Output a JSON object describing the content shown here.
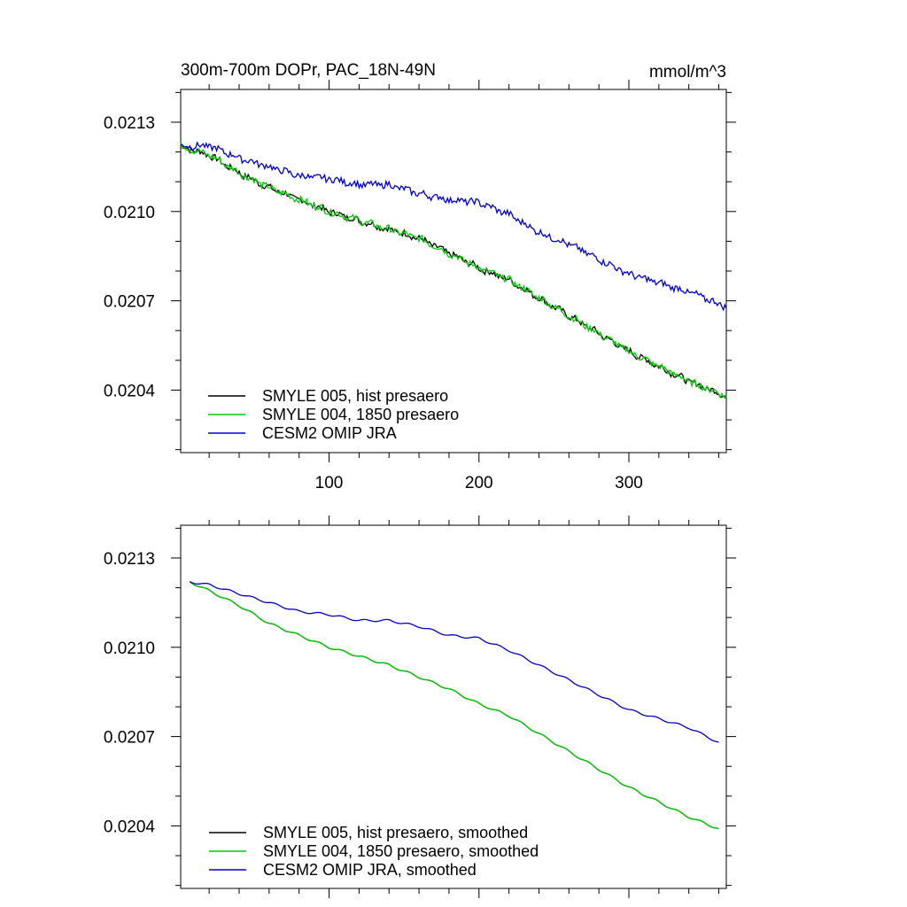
{
  "title_left": "300m-700m DOPr, PAC_18N-49N",
  "title_right": "mmol/m^3",
  "chart_data": [
    {
      "type": "line",
      "title": "300m-700m DOPr, PAC_18N-49N",
      "units": "mmol/m^3",
      "xlim": [
        1,
        365
      ],
      "ylim": [
        0.02019,
        0.02141
      ],
      "x_ticks": [
        100,
        200,
        300
      ],
      "x_tick_labels": [
        "100",
        "200",
        "300"
      ],
      "y_ticks": [
        0.0204,
        0.0207,
        0.021,
        0.0213
      ],
      "y_tick_labels": [
        "0.0204",
        "0.0207",
        "0.0210",
        "0.0213"
      ],
      "legend_position": "bottom-left",
      "x": [
        1,
        20,
        40,
        60,
        80,
        100,
        120,
        140,
        160,
        180,
        200,
        220,
        240,
        260,
        280,
        300,
        320,
        340,
        365
      ],
      "series": [
        {
          "name": "SMYLE 005, hist presaero",
          "color": "#000000",
          "values": [
            0.02122,
            0.02119,
            0.02113,
            0.02108,
            0.02104,
            0.021,
            0.02097,
            0.02094,
            0.02091,
            0.02086,
            0.02081,
            0.02077,
            0.02071,
            0.02065,
            0.02059,
            0.02053,
            0.02048,
            0.02043,
            0.02038
          ]
        },
        {
          "name": "SMYLE 004, 1850 presaero",
          "color": "#00cc00",
          "values": [
            0.02122,
            0.02119,
            0.02113,
            0.02108,
            0.02104,
            0.021,
            0.02097,
            0.02094,
            0.02091,
            0.02086,
            0.02081,
            0.02077,
            0.02071,
            0.02065,
            0.02059,
            0.02053,
            0.02048,
            0.02043,
            0.02038
          ]
        },
        {
          "name": "CESM2 OMIP JRA",
          "color": "#0000cc",
          "values": [
            0.02122,
            0.02122,
            0.02118,
            0.02115,
            0.02112,
            0.02111,
            0.02109,
            0.02109,
            0.02106,
            0.02104,
            0.02103,
            0.02099,
            0.02093,
            0.02089,
            0.02084,
            0.02079,
            0.02076,
            0.02073,
            0.02068
          ]
        }
      ]
    },
    {
      "type": "line",
      "xlim": [
        1,
        365
      ],
      "ylim": [
        0.02019,
        0.02141
      ],
      "x_ticks": [
        100,
        200,
        300
      ],
      "y_ticks": [
        0.0204,
        0.0207,
        0.021,
        0.0213
      ],
      "y_tick_labels": [
        "0.0204",
        "0.0207",
        "0.0210",
        "0.0213"
      ],
      "legend_position": "bottom-left",
      "x": [
        7,
        20,
        40,
        60,
        80,
        100,
        120,
        140,
        160,
        180,
        200,
        220,
        240,
        260,
        280,
        300,
        320,
        340,
        360
      ],
      "series": [
        {
          "name": "SMYLE 005, hist presaero, smoothed",
          "color": "#000000",
          "values": [
            0.02122,
            0.02119,
            0.02114,
            0.02108,
            0.02104,
            0.021,
            0.02097,
            0.02094,
            0.0209,
            0.02086,
            0.02081,
            0.02077,
            0.02071,
            0.02065,
            0.02059,
            0.02053,
            0.02048,
            0.02043,
            0.02039
          ]
        },
        {
          "name": "SMYLE 004, 1850 presaero, smoothed",
          "color": "#00cc00",
          "values": [
            0.02122,
            0.02119,
            0.02114,
            0.02108,
            0.02104,
            0.021,
            0.02097,
            0.02094,
            0.0209,
            0.02086,
            0.02081,
            0.02077,
            0.02071,
            0.02065,
            0.02059,
            0.02053,
            0.02048,
            0.02043,
            0.02039
          ]
        },
        {
          "name": "CESM2 OMIP JRA, smoothed",
          "color": "#0000cc",
          "values": [
            0.02122,
            0.02121,
            0.02118,
            0.02115,
            0.02112,
            0.02111,
            0.02109,
            0.02109,
            0.02107,
            0.02104,
            0.02103,
            0.02099,
            0.02094,
            0.02089,
            0.02084,
            0.02079,
            0.02076,
            0.02073,
            0.02068
          ]
        }
      ]
    }
  ]
}
